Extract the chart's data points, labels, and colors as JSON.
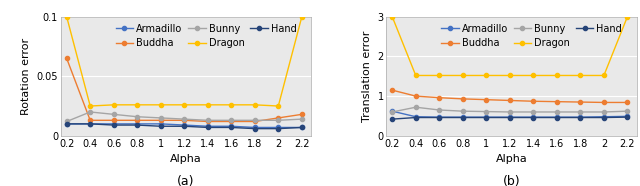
{
  "alpha": [
    0.2,
    0.4,
    0.6,
    0.8,
    1.0,
    1.2,
    1.4,
    1.6,
    1.8,
    2.0,
    2.2
  ],
  "rotation": {
    "Armadillo": [
      0.01,
      0.01,
      0.01,
      0.01,
      0.01,
      0.009,
      0.008,
      0.008,
      0.007,
      0.007,
      0.007
    ],
    "Buddha": [
      0.065,
      0.013,
      0.013,
      0.013,
      0.013,
      0.013,
      0.012,
      0.012,
      0.012,
      0.015,
      0.018
    ],
    "Bunny": [
      0.012,
      0.02,
      0.018,
      0.016,
      0.015,
      0.014,
      0.013,
      0.013,
      0.013,
      0.013,
      0.014
    ],
    "Dragon": [
      0.1,
      0.025,
      0.026,
      0.026,
      0.026,
      0.026,
      0.026,
      0.026,
      0.026,
      0.025,
      0.1
    ],
    "Hand": [
      0.01,
      0.01,
      0.009,
      0.009,
      0.008,
      0.008,
      0.007,
      0.007,
      0.006,
      0.006,
      0.007
    ]
  },
  "translation": {
    "Armadillo": [
      0.62,
      0.48,
      0.47,
      0.47,
      0.47,
      0.47,
      0.47,
      0.47,
      0.47,
      0.48,
      0.49
    ],
    "Buddha": [
      1.15,
      1.0,
      0.96,
      0.93,
      0.91,
      0.89,
      0.87,
      0.86,
      0.85,
      0.84,
      0.84
    ],
    "Bunny": [
      0.6,
      0.72,
      0.65,
      0.62,
      0.61,
      0.6,
      0.6,
      0.6,
      0.6,
      0.6,
      0.62
    ],
    "Dragon": [
      3.0,
      1.52,
      1.52,
      1.52,
      1.52,
      1.52,
      1.52,
      1.52,
      1.52,
      1.52,
      3.0
    ],
    "Hand": [
      0.42,
      0.46,
      0.46,
      0.46,
      0.46,
      0.46,
      0.46,
      0.46,
      0.46,
      0.46,
      0.47
    ]
  },
  "colors": {
    "Armadillo": "#4472C4",
    "Buddha": "#ED7D31",
    "Bunny": "#A5A5A5",
    "Dragon": "#FFC000",
    "Hand": "#264478"
  },
  "rotation_ylim": [
    0,
    0.1
  ],
  "rotation_yticks": [
    0,
    0.05,
    0.1
  ],
  "translation_ylim": [
    0,
    3
  ],
  "translation_yticks": [
    0,
    1,
    2,
    3
  ],
  "xlabel": "Alpha",
  "ylabel_left": "Rotation error",
  "ylabel_right": "Translation error",
  "label_a": "(a)",
  "label_b": "(b)",
  "xticks": [
    0.2,
    0.4,
    0.6,
    0.8,
    1.0,
    1.2,
    1.4,
    1.6,
    1.8,
    2.0,
    2.2
  ],
  "xtick_labels": [
    "0.2",
    "0.4",
    "0.6",
    "0.8",
    "1",
    "1.2",
    "1.4",
    "1.6",
    "1.8",
    "2",
    "2.2"
  ],
  "plot_bg_color": "#E9E9E9",
  "grid_color": "#FFFFFF",
  "tick_fontsize": 7,
  "label_fontsize": 8,
  "legend_fontsize": 7,
  "marker_size": 3,
  "line_width": 1.0
}
